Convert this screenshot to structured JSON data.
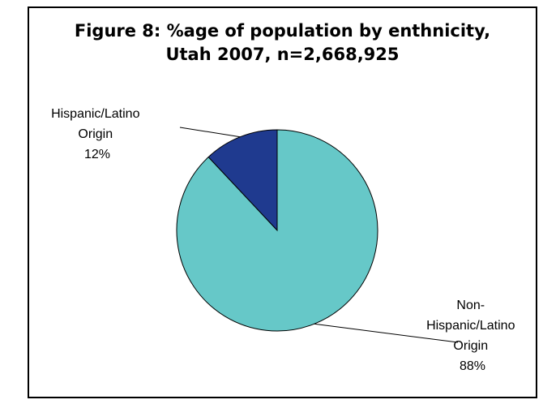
{
  "chart_data": {
    "type": "pie",
    "title_lines": [
      "Figure 8: %age of population by enthnicity,",
      "Utah 2007, n=2,668,925"
    ],
    "slices": [
      {
        "label_lines": [
          "Hispanic/Latino",
          "Origin",
          "12%"
        ],
        "value": 12,
        "color": "#1f3a8f"
      },
      {
        "label_lines": [
          "Non-",
          "Hispanic/Latino",
          "Origin",
          "88%"
        ],
        "value": 88,
        "color": "#66c8c8"
      }
    ],
    "legend": "none"
  }
}
